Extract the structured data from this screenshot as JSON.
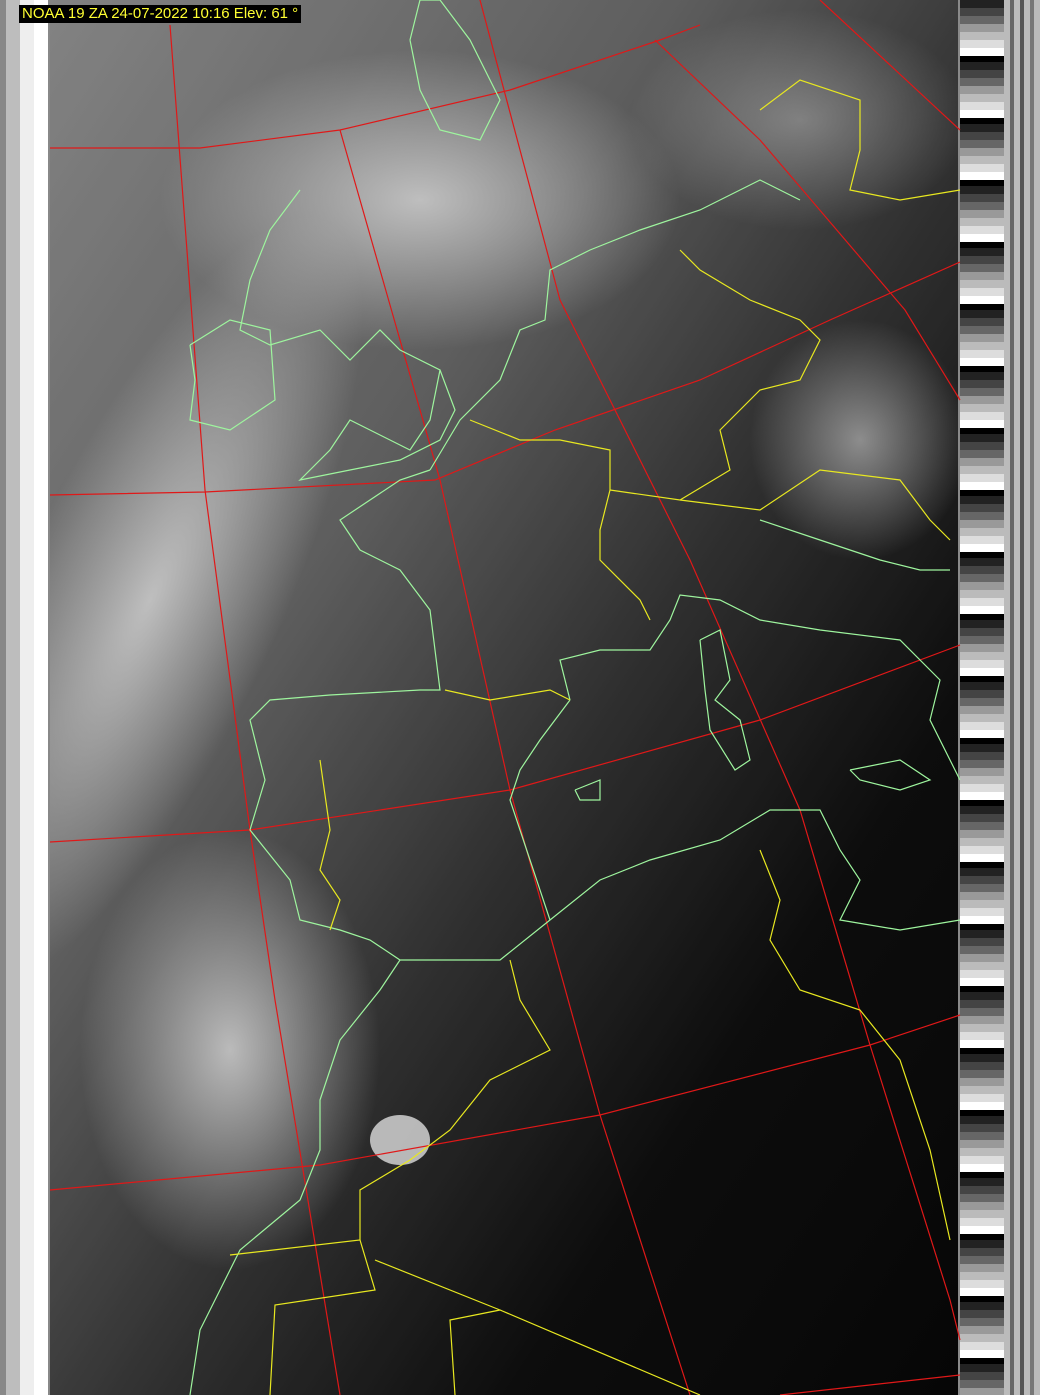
{
  "caption": "NOAA 19 ZA 24-07-2022 10:16 Elev: 61 °",
  "colors": {
    "graticule": "#e01818",
    "coastline": "#9ef59e",
    "borders": "#e8e820",
    "caption_text": "#ffff33"
  },
  "layers": [
    "satellite-imagery",
    "graticule",
    "coastlines",
    "country-borders",
    "telemetry-strip-left",
    "telemetry-strip-right"
  ]
}
